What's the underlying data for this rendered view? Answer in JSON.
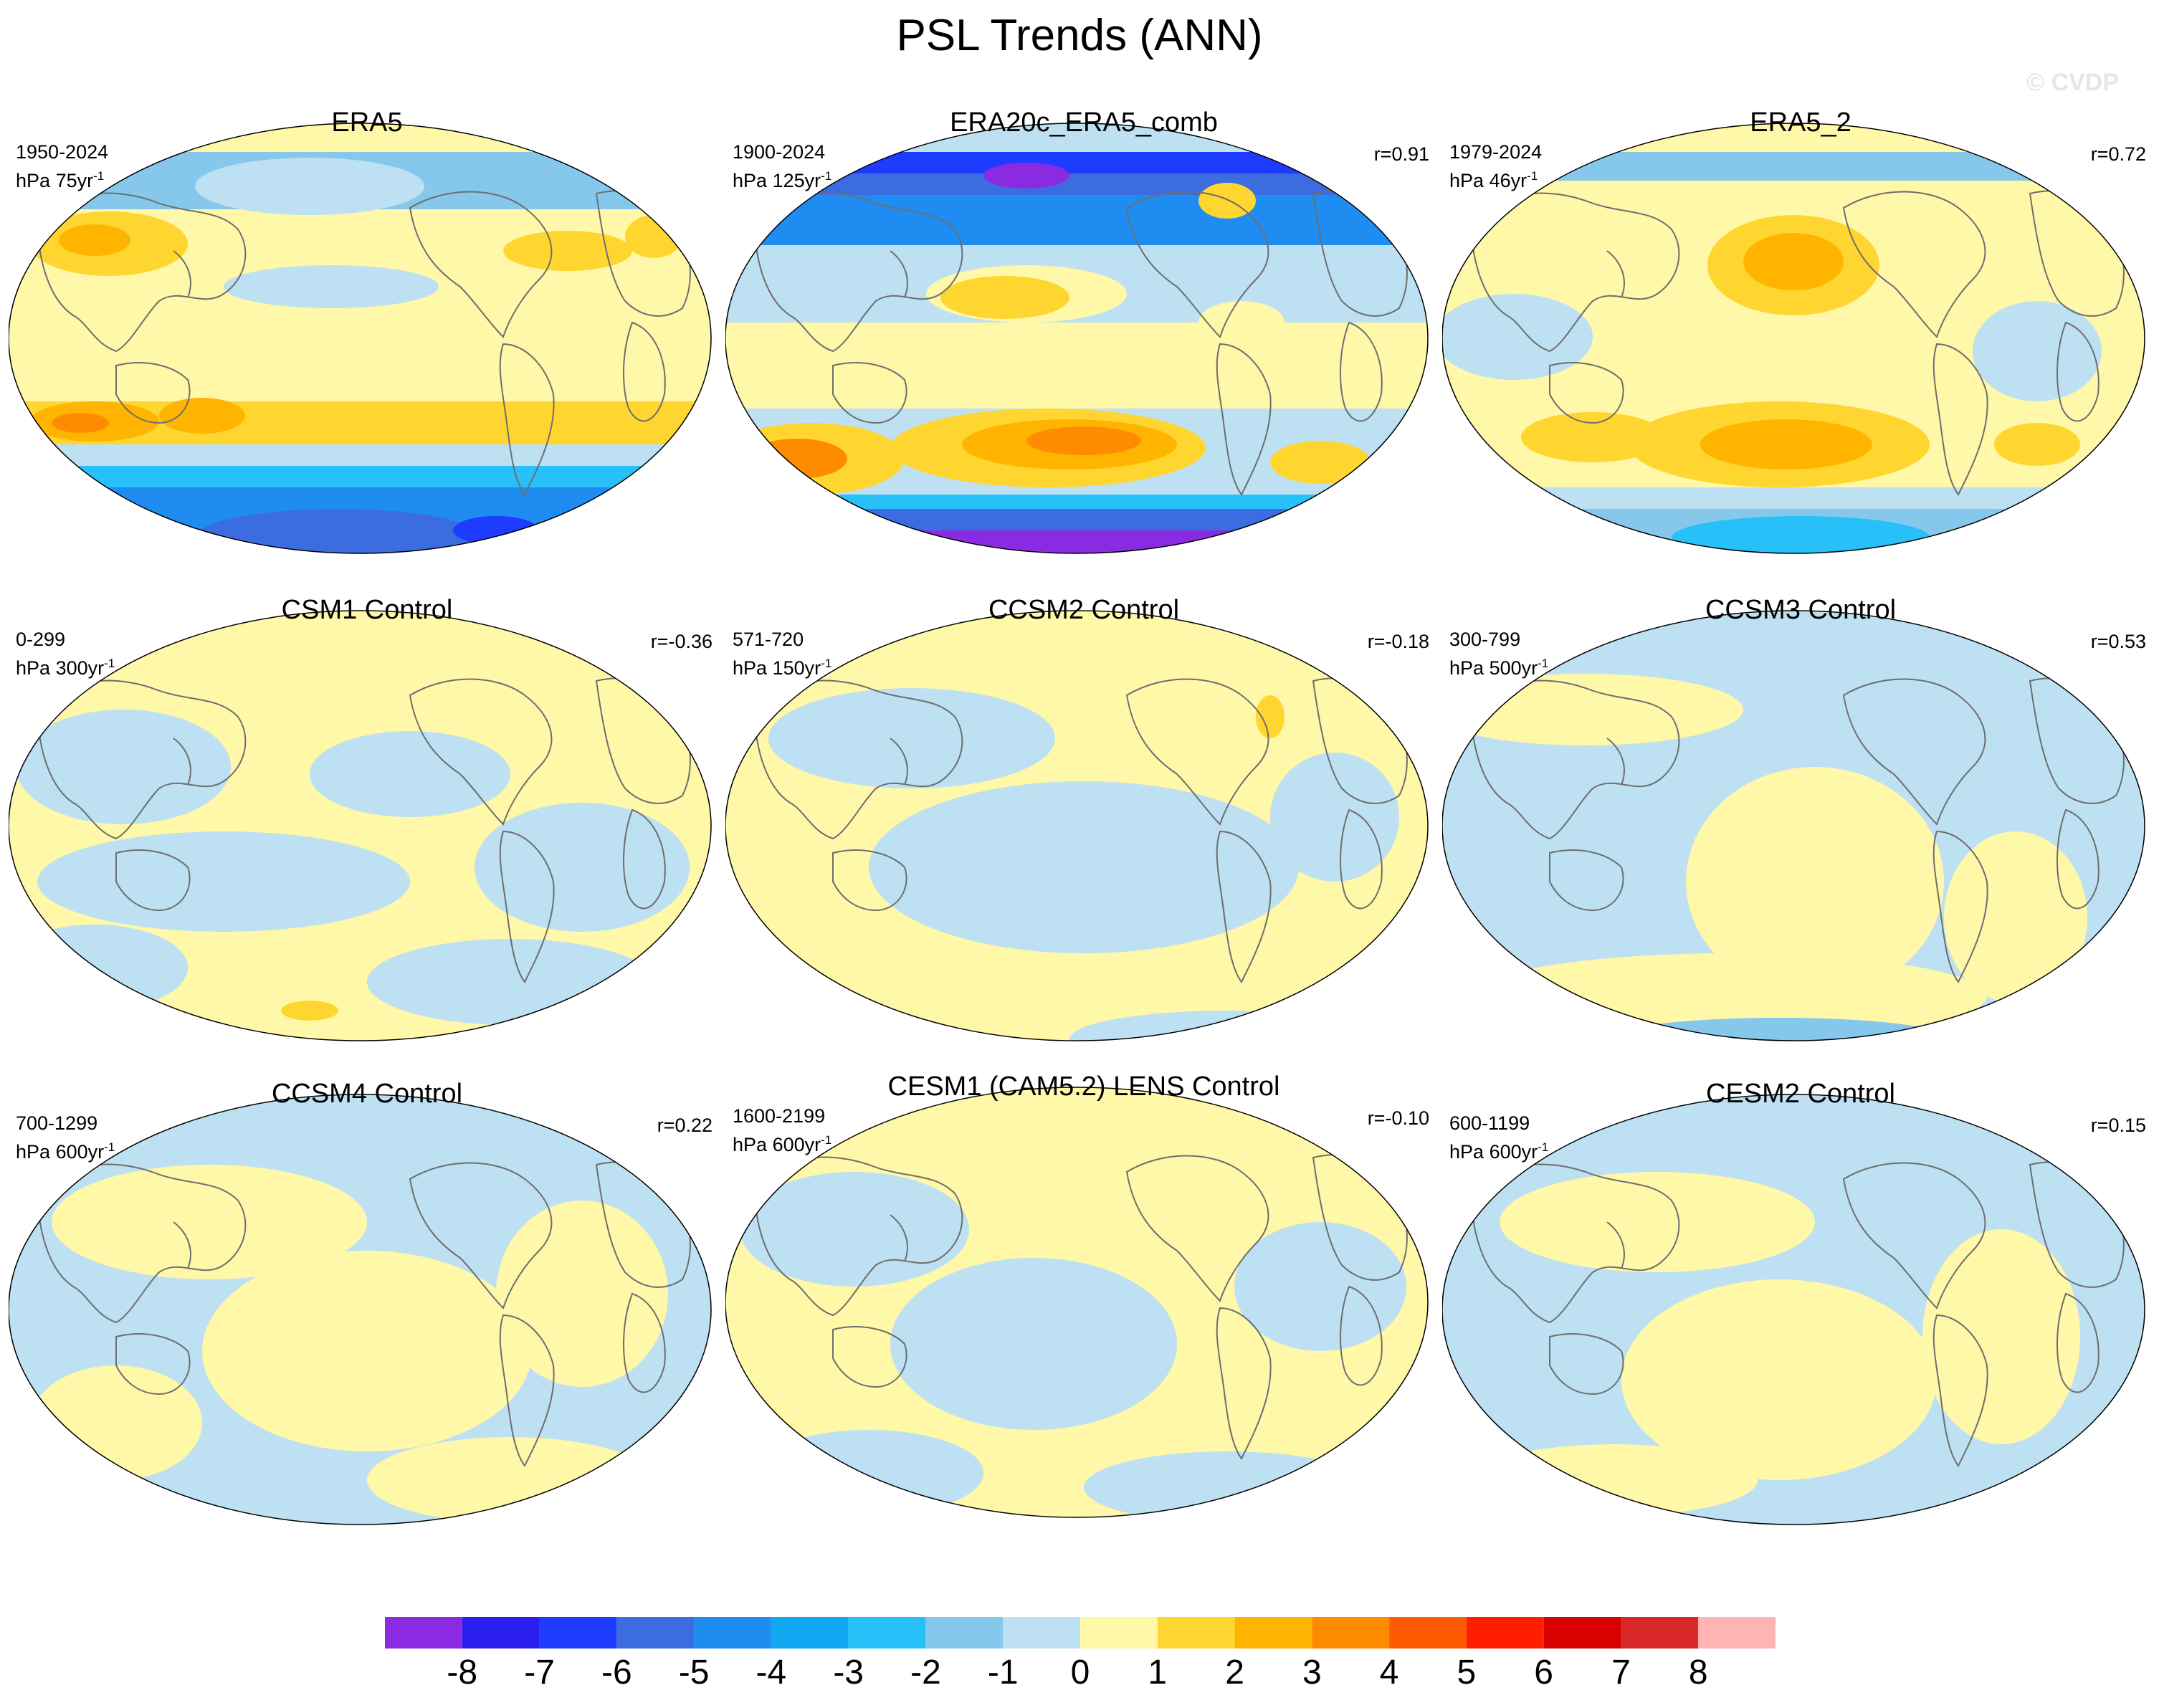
{
  "figure": {
    "title": "PSL Trends (ANN)",
    "watermark": "© CVDP",
    "unit_prefix": "hPa",
    "unit_suffix": "yr",
    "unit_exp": "-1"
  },
  "panels": [
    {
      "title": "ERA5",
      "years": "1950-2024",
      "trend_len": "75",
      "r": "",
      "pattern": "era5"
    },
    {
      "title": "ERA20c_ERA5_comb",
      "years": "1900-2024",
      "trend_len": "125",
      "r": "r=0.91",
      "pattern": "era20c"
    },
    {
      "title": "ERA5_2",
      "years": "1979-2024",
      "trend_len": "46",
      "r": "r=0.72",
      "pattern": "era5_2"
    },
    {
      "title": "CSM1 Control",
      "years": "0-299",
      "trend_len": "300",
      "r": "r=-0.36",
      "pattern": "ctrl_a"
    },
    {
      "title": "CCSM2 Control",
      "years": "571-720",
      "trend_len": "150",
      "r": "r=-0.18",
      "pattern": "ctrl_b"
    },
    {
      "title": "CCSM3 Control",
      "years": "300-799",
      "trend_len": "500",
      "r": "r=0.53",
      "pattern": "ctrl_c"
    },
    {
      "title": "CCSM4 Control",
      "years": "700-1299",
      "trend_len": "600",
      "r": "r=0.22",
      "pattern": "ctrl_d"
    },
    {
      "title": "CESM1 (CAM5.2) LENS Control",
      "years": "1600-2199",
      "trend_len": "600",
      "r": "r=-0.10",
      "pattern": "ctrl_e"
    },
    {
      "title": "CESM2 Control",
      "years": "600-1199",
      "trend_len": "600",
      "r": "r=0.15",
      "pattern": "ctrl_f"
    }
  ],
  "colorbar": {
    "labels": [
      "-8",
      "-7",
      "-6",
      "-5",
      "-4",
      "-3",
      "-2",
      "-1",
      "0",
      "1",
      "2",
      "3",
      "4",
      "5",
      "6",
      "7",
      "8"
    ],
    "colors": [
      "#8a2be2",
      "#2a1ff0",
      "#1e3cff",
      "#3c6de0",
      "#1e8cf0",
      "#10a8f0",
      "#28c0f8",
      "#86c8ec",
      "#bde0f2",
      "#fff8a8",
      "#ffd630",
      "#ffb400",
      "#ff8c00",
      "#ff5a00",
      "#ff1e00",
      "#d80000",
      "#d82828",
      "#ffb4b4"
    ]
  },
  "palette": {
    "ocean_neg_light": "#bde0f2",
    "pos_light": "#fff8a8",
    "neg2": "#86c8ec",
    "neg3": "#28c0f8",
    "neg4": "#1e8cf0",
    "neg5": "#3c6de0",
    "neg6": "#1e3cff",
    "neg8": "#8a2be2",
    "pos2": "#ffd630",
    "pos3": "#ffb400",
    "pos4": "#ff8c00",
    "pos5": "#ff5a00",
    "coast": "#6e6e6e"
  }
}
